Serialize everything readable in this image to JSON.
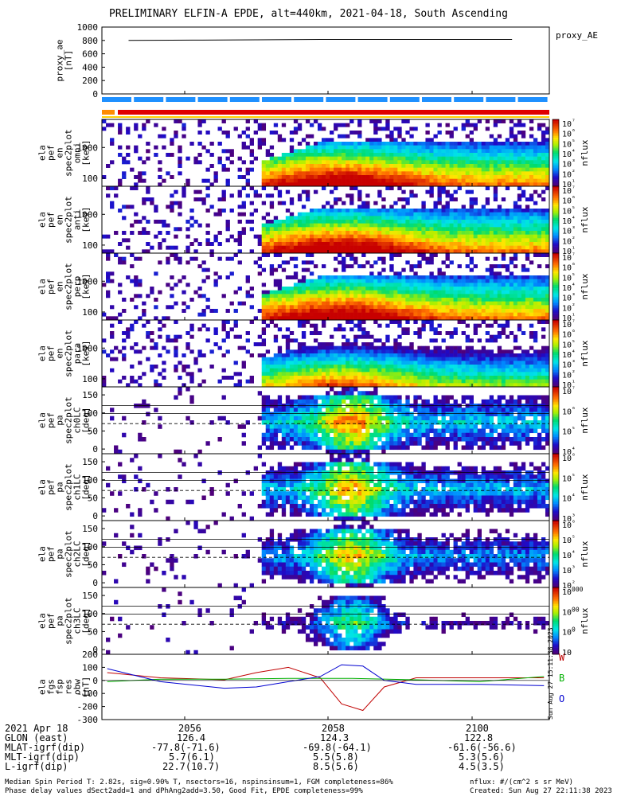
{
  "title": "PRELIMINARY ELFIN-A EPDE, alt=440km, 2021-04-18, South Ascending",
  "chart_data": {
    "type": "heatmap",
    "panels": [
      {
        "name": "proxy_ae",
        "ylabel": [
          "proxy_ae",
          "[nT]"
        ],
        "yticks": [
          "1000",
          "800",
          "600",
          "400",
          "200",
          "0"
        ],
        "ylim": [
          0,
          1000
        ],
        "legend": "proxy_AE",
        "kind": "line",
        "series": [
          {
            "name": "proxy_AE",
            "x": [
              "2055:00",
              "2056:00",
              "2057:00",
              "2058:00",
              "2059:00",
              "2100:00",
              "2101:00"
            ],
            "values": [
              800,
              805,
              810,
              815,
              815,
              815,
              815
            ]
          }
        ]
      },
      {
        "name": "ela_pef_en_spec2plot_omni",
        "ylabel": [
          "ela",
          "pef",
          "en",
          "spec2plot",
          "omni",
          "[keV]"
        ],
        "yticks": [
          "1000",
          "100"
        ],
        "cbar_ticks": [
          "10⁷",
          "10⁶",
          "10⁵",
          "10⁴",
          "10³",
          "10²",
          "10¹"
        ],
        "cbar_label": "nflux",
        "kind": "energy"
      },
      {
        "name": "ela_pef_en_spec2plot_anti",
        "ylabel": [
          "ela",
          "pef",
          "en",
          "spec2plot",
          "anti",
          "[keV]"
        ],
        "yticks": [
          "1000",
          "100"
        ],
        "cbar_ticks": [
          "10⁷",
          "10⁶",
          "10⁵",
          "10⁴",
          "10³",
          "10²",
          "10¹"
        ],
        "cbar_label": "nflux",
        "kind": "energy"
      },
      {
        "name": "ela_pef_en_spec2plot_perp",
        "ylabel": [
          "ela",
          "pef",
          "en",
          "spec2plot",
          "perp",
          "[keV]"
        ],
        "yticks": [
          "1000",
          "100"
        ],
        "cbar_ticks": [
          "10⁷",
          "10⁶",
          "10⁵",
          "10⁴",
          "10³",
          "10²",
          "10¹"
        ],
        "cbar_label": "nflux",
        "kind": "energy"
      },
      {
        "name": "ela_pef_en_spec2plot_para",
        "ylabel": [
          "ela",
          "pef",
          "en",
          "spec2plot",
          "para",
          "[keV]"
        ],
        "yticks": [
          "1000",
          "100"
        ],
        "cbar_ticks": [
          "10⁷",
          "10⁶",
          "10⁵",
          "10⁴",
          "10³",
          "10²",
          "10¹"
        ],
        "cbar_label": "nflux",
        "kind": "energy"
      },
      {
        "name": "ela_pef_pa_spec2plot_ch0LC",
        "ylabel": [
          "ela",
          "pef",
          "pa",
          "spec2plot",
          "ch0LC",
          "[deg]"
        ],
        "yticks": [
          "150",
          "100",
          "50",
          "0"
        ],
        "cbar_ticks": [
          "10⁷",
          "10⁶",
          "10⁵",
          "10⁴"
        ],
        "cbar_label": "nflux",
        "kind": "pa"
      },
      {
        "name": "ela_pef_pa_spec2plot_ch1LC",
        "ylabel": [
          "ela",
          "pef",
          "pa",
          "spec2plot",
          "ch1LC",
          "[deg]"
        ],
        "yticks": [
          "150",
          "100",
          "50",
          "0"
        ],
        "cbar_ticks": [
          "10⁶",
          "10⁵",
          "10⁴",
          "10³"
        ],
        "cbar_label": "nflux",
        "kind": "pa"
      },
      {
        "name": "ela_pef_pa_spec2plot_ch2LC",
        "ylabel": [
          "ela",
          "pef",
          "pa",
          "spec2plot",
          "ch2LC",
          "[deg]"
        ],
        "yticks": [
          "150",
          "100",
          "50",
          "0"
        ],
        "cbar_ticks": [
          "10⁶",
          "10⁵",
          "10⁴",
          "10³",
          "10²"
        ],
        "cbar_label": "nflux",
        "kind": "pa"
      },
      {
        "name": "ela_pef_pa_spec2plot_ch3LC",
        "ylabel": [
          "ela",
          "pef",
          "pa",
          "spec2plot",
          "ch3LC",
          "[deg]"
        ],
        "yticks": [
          "150",
          "100",
          "50",
          "0"
        ],
        "cbar_ticks": [
          "10000",
          "1000",
          "100",
          "10"
        ],
        "cbar_label": "nflux",
        "kind": "pa"
      },
      {
        "name": "ela_fgs_fsp_res_obw",
        "ylabel": [
          "ela",
          "fgs",
          "fsp",
          "res",
          "obw",
          "[nT]"
        ],
        "yticks": [
          "200",
          "100",
          "0",
          "-100",
          "-200",
          "-300"
        ],
        "ylim": [
          -300,
          200
        ],
        "kind": "line",
        "legend_items": [
          {
            "label": "W",
            "color": "#c00000"
          },
          {
            "label": "B",
            "color": "#00b000"
          },
          {
            "label": "O",
            "color": "#0000d0"
          }
        ],
        "series": [
          {
            "name": "W",
            "color": "#c00000",
            "x": [
              "2054:40",
              "2055:30",
              "2056:30",
              "2057:00",
              "2057:30",
              "2058:00",
              "2058:20",
              "2058:40",
              "2059:00",
              "2059:30",
              "2100:30",
              "2101:30"
            ],
            "values": [
              60,
              20,
              5,
              60,
              100,
              20,
              -180,
              -230,
              -50,
              20,
              20,
              20
            ]
          },
          {
            "name": "B",
            "color": "#00b000",
            "x": [
              "2054:40",
              "2055:30",
              "2056:30",
              "2057:30",
              "2058:30",
              "2059:30",
              "2100:30",
              "2101:30"
            ],
            "values": [
              -10,
              10,
              10,
              15,
              15,
              5,
              -10,
              30
            ]
          },
          {
            "name": "O",
            "color": "#0000d0",
            "x": [
              "2054:40",
              "2055:30",
              "2056:30",
              "2057:00",
              "2057:30",
              "2058:00",
              "2058:20",
              "2058:40",
              "2059:00",
              "2059:30",
              "2100:30",
              "2101:30"
            ],
            "values": [
              90,
              -10,
              -60,
              -50,
              -10,
              30,
              120,
              110,
              0,
              -30,
              -30,
              -40
            ]
          }
        ]
      }
    ],
    "xticks": [
      "2056",
      "2058",
      "2100"
    ],
    "time_table": {
      "date": "2021 Apr 18",
      "rows": [
        {
          "label": "GLON (east)",
          "values": [
            "126.4",
            "124.3",
            "122.8"
          ]
        },
        {
          "label": "MLAT-igrf(dip)",
          "values": [
            "-77.8(-71.6)",
            "-69.8(-64.1)",
            "-61.6(-56.6)"
          ]
        },
        {
          "label": "MLT-igrf(dip)",
          "values": [
            "5.7(6.1)",
            "5.5(5.8)",
            "5.3(5.6)"
          ]
        },
        {
          "label": "L-igrf(dip)",
          "values": [
            "22.7(10.7)",
            "8.5(5.6)",
            "4.5(3.5)"
          ]
        }
      ]
    }
  },
  "footer": {
    "line1": "Median Spin Period T: 2.82s, sig=0.90% T, nsectors=16, nspinsinsum=1, FGM completeness=86%",
    "line2": "Phase delay values dSect2add=1 and dPhAng2add=3.50, Good Fit, EPDE completeness=99%",
    "units": "nflux: #/(cm^2 s sr MeV)",
    "created": "Created: Sun Aug 27 22:11:38 2023",
    "side_stamp": "Sun Aug 27 15:11:38 2023"
  }
}
